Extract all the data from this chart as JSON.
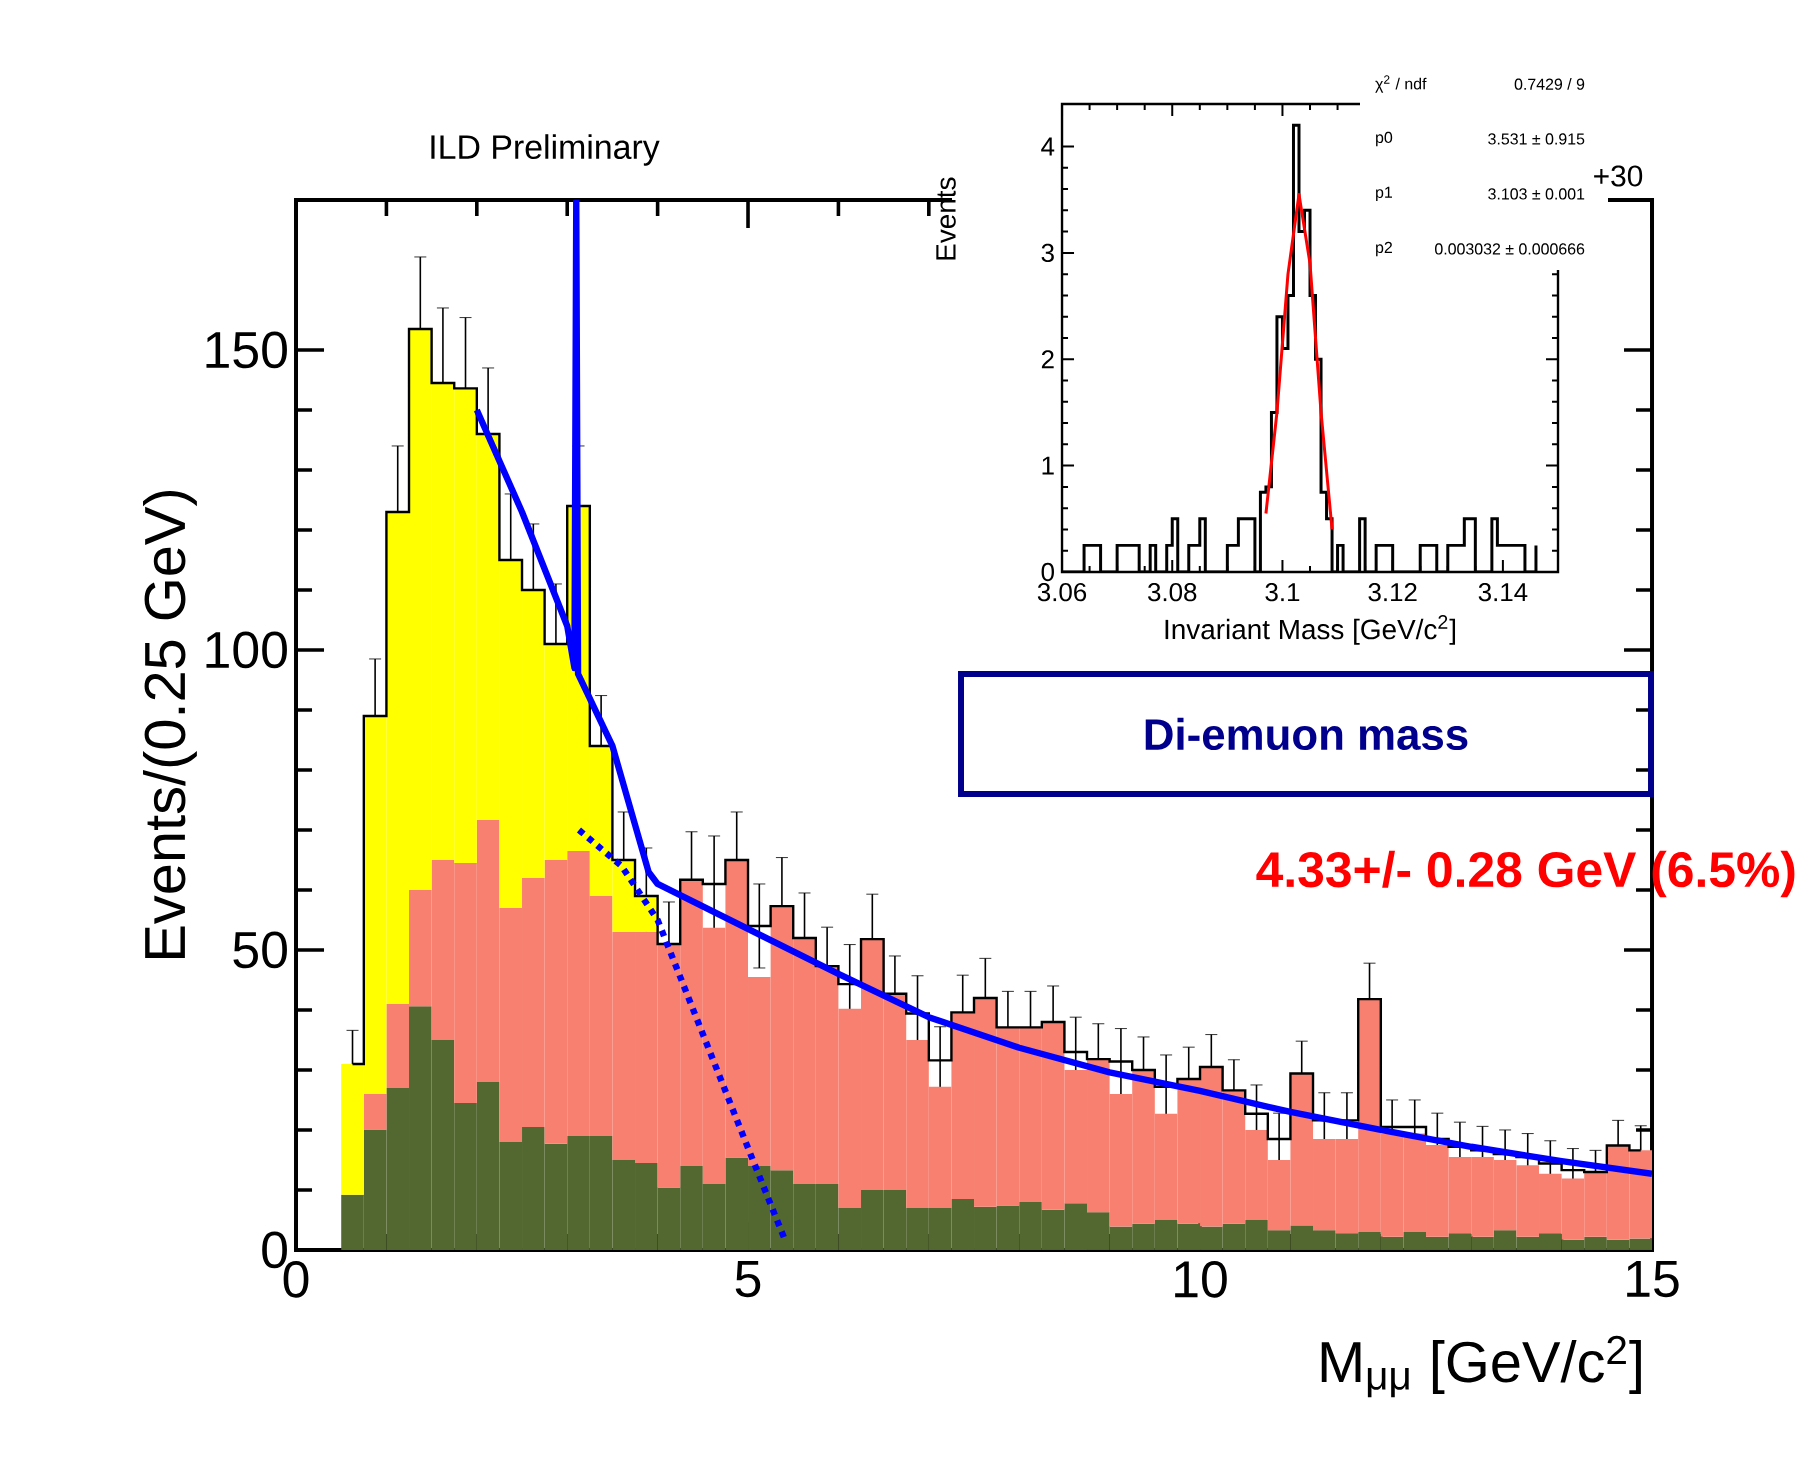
{
  "chart_data": [
    {
      "type": "bar",
      "xlabel": "M$_{μμ}$ [GeV/c$^{2}$]",
      "ylabel": "Events/(0.25 GeV)",
      "stacked": true,
      "xlim": [
        0,
        15
      ],
      "ylim": [
        0,
        175
      ],
      "xticks": [
        0,
        5,
        10,
        15
      ],
      "yticks": [
        0,
        50,
        100,
        150
      ],
      "x": [
        0.625,
        0.875,
        1.125,
        1.375,
        1.625,
        1.875,
        2.125,
        2.375,
        2.625,
        2.875,
        3.125,
        3.375,
        3.625,
        3.875,
        4.125,
        4.375,
        4.625,
        4.875,
        5.125,
        5.375,
        5.625,
        5.875,
        6.125,
        6.375,
        6.625,
        6.875,
        7.125,
        7.375,
        7.625,
        7.875,
        8.125,
        8.375,
        8.625,
        8.875,
        9.125,
        9.375,
        9.625,
        9.875,
        10.125,
        10.375,
        10.625,
        10.875,
        11.125,
        11.375,
        11.625,
        11.875,
        12.125,
        12.375,
        12.625,
        12.875,
        13.125,
        13.375,
        13.625,
        13.875,
        14.125,
        14.375,
        14.625,
        14.875
      ],
      "series": [
        {
          "type": "step",
          "color": "#000000",
          "x": [
            0.625,
            0.875,
            1.125,
            1.375,
            1.625,
            1.875,
            2.125,
            2.375,
            2.625,
            2.875,
            3.125,
            3.375,
            3.625,
            3.875,
            4.125,
            4.375,
            4.625,
            4.875,
            5.125,
            5.375,
            5.625,
            5.875,
            6.125,
            6.375,
            6.625,
            6.875,
            7.125,
            7.375,
            7.625,
            7.875,
            8.125,
            8.375,
            8.625,
            8.875,
            9.125,
            9.375,
            9.625,
            9.875,
            10.125,
            10.375,
            10.625,
            10.875,
            11.125,
            11.375,
            11.625,
            11.875,
            12.125,
            12.375,
            12.625,
            12.875,
            13.125,
            13.375,
            13.625,
            13.875,
            14.125,
            14.375,
            14.625,
            14.875
          ],
          "values": [
            31,
            89,
            123,
            153.5,
            144.5,
            143.6,
            136,
            115,
            110,
            101,
            124,
            84,
            65,
            59,
            51,
            61.7,
            61,
            65,
            54,
            57.3,
            52,
            47.3,
            44.3,
            51.8,
            42.7,
            39.4,
            31.6,
            39.6,
            42,
            37.1,
            37.1,
            38,
            33,
            31.8,
            31.4,
            30,
            27.2,
            28.5,
            30.5,
            26.6,
            22.7,
            18.5,
            29.4,
            21.6,
            21.6,
            41.8,
            20.5,
            20.5,
            18.5,
            17.2,
            16.6,
            16,
            15.5,
            14.4,
            13.3,
            13,
            17.4,
            16.6
          ],
          "errors": [
            5.6,
            9.5,
            11,
            12,
            12.5,
            11.8,
            11,
            11,
            11,
            10,
            10,
            8.4,
            8,
            8,
            7,
            8,
            8,
            8,
            7,
            8.1,
            7.5,
            6.5,
            6.6,
            7.5,
            6.3,
            6.3,
            5.6,
            6.2,
            6.6,
            6,
            6,
            6,
            5.8,
            5.9,
            5.5,
            5.5,
            5.3,
            5.3,
            5.4,
            5.1,
            4.8,
            4.3,
            5.4,
            4.6,
            4.6,
            6,
            4.5,
            4.5,
            4.3,
            4.1,
            4,
            4,
            3.9,
            3.8,
            3.6,
            3.6,
            4.2,
            4.1
          ]
        },
        {
          "color": "#536830",
          "values": [
            9.2,
            20,
            27,
            40.6,
            35,
            24.5,
            28,
            18,
            20.5,
            17.7,
            19,
            19,
            15,
            14.5,
            10.4,
            14,
            11,
            15.4,
            14,
            13.3,
            11,
            11,
            7,
            10,
            10,
            7,
            7,
            8.5,
            7.2,
            7.4,
            8,
            6.7,
            7.8,
            6.3,
            3.9,
            4.4,
            5,
            4.4,
            3.9,
            4.4,
            5,
            3.3,
            4.1,
            3.3,
            2.8,
            3,
            2.2,
            3,
            2.2,
            2.8,
            2.2,
            3.3,
            2.2,
            2.8,
            1.7,
            2.2,
            1.7,
            1.9
          ]
        },
        {
          "color": "#f88070",
          "values": [
            null,
            6,
            14,
            19.4,
            30,
            40,
            43.7,
            39,
            41.5,
            47.3,
            47.5,
            40,
            38,
            38.5,
            40.6,
            47.7,
            42.7,
            49.6,
            31.5,
            44,
            41,
            36.3,
            33.2,
            41.8,
            32.7,
            28,
            20.2,
            31.1,
            34.8,
            29.7,
            29.1,
            31.3,
            22.2,
            25.5,
            22.1,
            25.6,
            17.7,
            24.1,
            26.6,
            22.2,
            15,
            11.7,
            25.3,
            15.2,
            15.7,
            38.8,
            17.2,
            16.4,
            15.3,
            12.7,
            13.3,
            11.7,
            11.9,
            9.9,
            10.2,
            10.8,
            15.7,
            14.7
          ]
        },
        {
          "color": "#ffff00",
          "values": [
            21.8,
            63,
            82,
            93.5,
            79.5,
            79.1,
            64.3,
            58,
            48,
            36,
            57.5,
            25,
            12,
            6,
            null,
            null,
            null,
            null,
            null,
            null,
            null,
            null,
            null,
            null,
            null,
            null,
            null,
            null,
            null,
            null,
            null,
            null,
            null,
            null,
            null,
            null,
            null,
            null,
            null,
            null,
            null,
            null,
            null,
            null,
            null,
            null,
            null,
            null,
            null,
            null,
            null,
            null,
            null,
            null,
            null,
            null,
            null,
            null
          ]
        },
        {
          "type": "line",
          "color": "#0000ff",
          "x": [
            2,
            2.5,
            3,
            3.08,
            3.1,
            3.12,
            3.5,
            3.9,
            4,
            5,
            6,
            7,
            8,
            9,
            10,
            11,
            12,
            13,
            14,
            15
          ],
          "values": [
            140,
            123,
            104,
            97,
            175,
            96,
            84,
            63,
            61,
            53.5,
            46,
            38.8,
            33.7,
            29.6,
            26.5,
            23,
            20,
            17.2,
            14.8,
            12.7
          ]
        },
        {
          "type": "line",
          "color": "#0000ff",
          "line_style": "dotted",
          "x": [
            3.13,
            3.6,
            4,
            4.5,
            5,
            5.4
          ],
          "values": [
            70,
            64,
            55,
            36,
            17,
            2
          ]
        }
      ],
      "annotations": [
        "ILD Preliminary",
        "Di-emuon mass",
        "4.33+/- 0.28 GeV (6.5%)",
        "+30"
      ]
    },
    {
      "type": "step",
      "xlabel": "Invariant Mass [GeV/c$^{2}$]",
      "ylabel": "Events",
      "xlim": [
        3.06,
        3.15
      ],
      "ylim": [
        0,
        4.4
      ],
      "xticks": [
        3.06,
        3.08,
        3.1,
        3.12,
        3.14
      ],
      "yticks": [
        0,
        1,
        2,
        3,
        4
      ],
      "series": [
        {
          "color": "#000000",
          "x": [
            3.06,
            3.064,
            3.067,
            3.07,
            3.074,
            3.076,
            3.077,
            3.079,
            3.08,
            3.081,
            3.083,
            3.085,
            3.086,
            3.09,
            3.092,
            3.095,
            3.096,
            3.097,
            3.098,
            3.099,
            3.1,
            3.101,
            3.102,
            3.103,
            3.104,
            3.105,
            3.106,
            3.107,
            3.108,
            3.109,
            3.11,
            3.111,
            3.114,
            3.115,
            3.117,
            3.12,
            3.125,
            3.128,
            3.13,
            3.133,
            3.135,
            3.138,
            3.139,
            3.144,
            3.146
          ],
          "values": [
            0,
            0.25,
            0,
            0.25,
            0,
            0.25,
            0,
            0.25,
            0.5,
            0,
            0.25,
            0.5,
            0,
            0.25,
            0.5,
            0,
            0.75,
            0.8,
            1.5,
            2.4,
            2.1,
            2.6,
            4.2,
            3.2,
            3.4,
            2.6,
            2,
            0.75,
            0.5,
            0,
            0.25,
            0,
            0.5,
            0,
            0.25,
            0,
            0.25,
            0,
            0.25,
            0.5,
            0,
            0.5,
            0.25,
            0,
            0.25
          ]
        },
        {
          "type": "line",
          "color": "#ff0000",
          "x": [
            3.097,
            3.099,
            3.101,
            3.103,
            3.105,
            3.107,
            3.109
          ],
          "values": [
            0.55,
            1.5,
            2.8,
            3.55,
            2.9,
            1.5,
            0.4
          ]
        }
      ],
      "annotations": [
        "χ$^{2}$ / ndf",
        "0.7429 / 9",
        "p0",
        "3.531 ± 0.915",
        "p1",
        "3.103 ± 0.001",
        "p2",
        "0.003032 ± 0.000666"
      ]
    }
  ]
}
